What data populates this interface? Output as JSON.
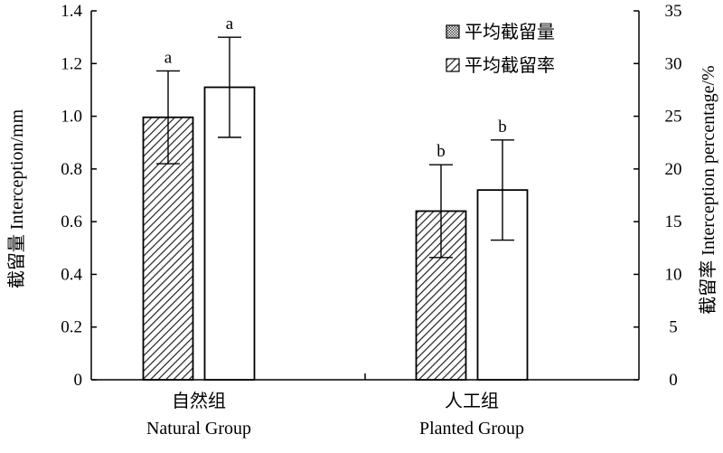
{
  "chart_data": {
    "type": "bar",
    "categories": [
      {
        "zh": "自然组",
        "en": "Natural Group"
      },
      {
        "zh": "人工组",
        "en": "Planted Group"
      }
    ],
    "series": [
      {
        "name": "平均截留率",
        "axis": "right",
        "pattern": "hatched",
        "values": [
          24.9,
          16.0
        ],
        "errors": [
          4.4,
          4.4
        ],
        "labels": [
          "a",
          "b"
        ]
      },
      {
        "name": "平均截留量",
        "axis": "left",
        "pattern": "open",
        "values": [
          1.11,
          0.72
        ],
        "errors": [
          0.19,
          0.19
        ],
        "labels": [
          "a",
          "b"
        ]
      }
    ],
    "left_axis": {
      "label": "截留量 Interception/mm",
      "ylim": [
        0,
        1.4
      ],
      "ticks": [
        "0",
        "0.2",
        "0.4",
        "0.6",
        "0.8",
        "1.0",
        "1.2",
        "1.4"
      ]
    },
    "right_axis": {
      "label": "截留率 Interception percentage/%",
      "ylim": [
        0,
        35
      ],
      "ticks": [
        "0",
        "5",
        "10",
        "15",
        "20",
        "25",
        "30",
        "35"
      ]
    },
    "legend": {
      "position": "top-right",
      "items": [
        "平均截留量",
        "平均截留率"
      ]
    },
    "grid": false
  }
}
